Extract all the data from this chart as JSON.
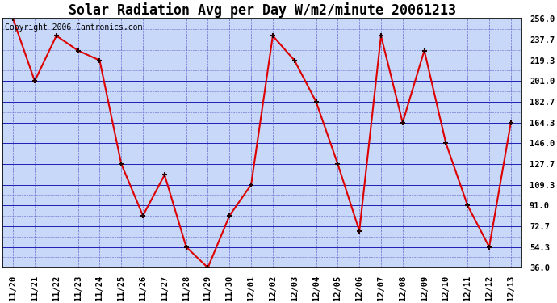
{
  "title": "Solar Radiation Avg per Day W/m2/minute 20061213",
  "copyright_text": "Copyright 2006 Cantronics.com",
  "dates": [
    "11/20",
    "11/21",
    "11/22",
    "11/23",
    "11/24",
    "11/25",
    "11/26",
    "11/27",
    "11/28",
    "11/29",
    "11/30",
    "12/01",
    "12/02",
    "12/03",
    "12/04",
    "12/05",
    "12/06",
    "12/07",
    "12/08",
    "12/09",
    "12/10",
    "12/11",
    "12/12",
    "12/13"
  ],
  "values": [
    256.0,
    201.0,
    241.0,
    228.0,
    219.3,
    127.7,
    82.0,
    118.0,
    54.3,
    36.0,
    82.0,
    109.3,
    241.0,
    219.3,
    182.7,
    127.7,
    68.5,
    241.0,
    164.3,
    228.0,
    146.0,
    91.0,
    54.3,
    164.3
  ],
  "line_color": "#dd0000",
  "marker_color": "#220000",
  "bg_color": "#c8d8f8",
  "grid_major_color": "#0000aa",
  "grid_minor_color": "#6666cc",
  "yticks": [
    36.0,
    54.3,
    72.7,
    91.0,
    109.3,
    127.7,
    146.0,
    164.3,
    182.7,
    201.0,
    219.3,
    237.7,
    256.0
  ],
  "ylim": [
    36.0,
    256.0
  ],
  "title_fontsize": 12,
  "label_fontsize": 7.5,
  "copyright_fontsize": 7
}
